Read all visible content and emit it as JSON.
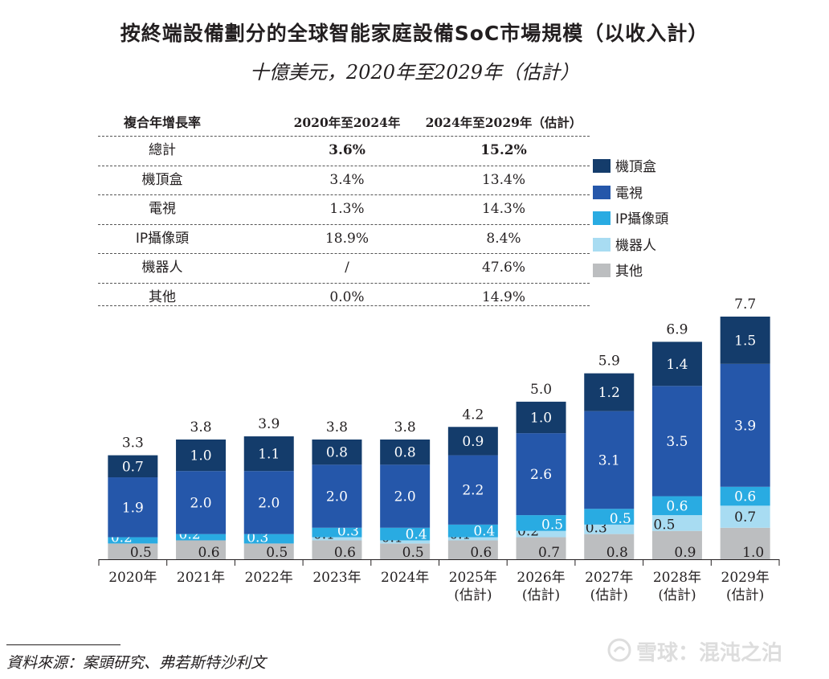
{
  "title": "按終端設備劃分的全球智能家庭設備SoC市場規模（以收入計）",
  "subtitle": "十億美元，2020年至2029年（估計）",
  "cagr_table": {
    "headers": [
      "複合年增長率",
      "2020年至2024年",
      "2024年至2029年（估計）"
    ],
    "rows": [
      {
        "label": "總計",
        "p1": "3.6%",
        "p2": "15.2%"
      },
      {
        "label": "機頂盒",
        "p1": "3.4%",
        "p2": "13.4%"
      },
      {
        "label": "電視",
        "p1": "1.3%",
        "p2": "14.3%"
      },
      {
        "label": "IP攝像頭",
        "p1": "18.9%",
        "p2": "8.4%"
      },
      {
        "label": "機器人",
        "p1": "/",
        "p2": "47.6%"
      },
      {
        "label": "其他",
        "p1": "0.0%",
        "p2": "14.9%"
      }
    ]
  },
  "source": "資料來源：案頭研究、弗若斯特沙利文",
  "watermark": "雪球：混沌之泊",
  "chart_data": {
    "type": "bar",
    "stacked": true,
    "categories": [
      "2020年",
      "2021年",
      "2022年",
      "2023年",
      "2024年",
      "2025年\n(估計)",
      "2026年\n(估計)",
      "2027年\n(估計)",
      "2028年\n(估計)",
      "2029年\n(估計)"
    ],
    "totals": [
      "3.3",
      "3.8",
      "3.9",
      "3.8",
      "3.8",
      "4.2",
      "5.0",
      "5.9",
      "6.9",
      "7.7"
    ],
    "series": [
      {
        "name": "其他",
        "color": "#bcbec0",
        "values": [
          0.5,
          0.6,
          0.5,
          0.6,
          0.5,
          0.6,
          0.7,
          0.8,
          0.9,
          1.0
        ],
        "labels": [
          "0.5",
          "0.6",
          "0.5",
          "0.6",
          "0.5",
          "0.6",
          "0.7",
          "0.8",
          "0.9",
          "1.0"
        ]
      },
      {
        "name": "機器人",
        "color": "#a8dcf2",
        "values": [
          0,
          0,
          0,
          0.1,
          0.1,
          0.1,
          0.2,
          0.3,
          0.5,
          0.7
        ],
        "labels": [
          "",
          "",
          "",
          "0.1",
          "0.1",
          "0.1",
          "0.2",
          "0.3",
          "0.5",
          "0.7"
        ]
      },
      {
        "name": "IP攝像頭",
        "color": "#29abe2",
        "values": [
          0.2,
          0.2,
          0.3,
          0.3,
          0.4,
          0.4,
          0.5,
          0.5,
          0.6,
          0.6
        ],
        "labels": [
          "0.2",
          "0.2",
          "0.3",
          "0.3",
          "0.4",
          "0.4",
          "0.5",
          "0.5",
          "0.6",
          "0.6"
        ]
      },
      {
        "name": "電視",
        "color": "#2557aa",
        "values": [
          1.9,
          2.0,
          2.0,
          2.0,
          2.0,
          2.2,
          2.6,
          3.1,
          3.5,
          3.9
        ],
        "labels": [
          "1.9",
          "2.0",
          "2.0",
          "2.0",
          "2.0",
          "2.2",
          "2.6",
          "3.1",
          "3.5",
          "3.9"
        ]
      },
      {
        "name": "機頂盒",
        "color": "#143c6b",
        "values": [
          0.7,
          1.0,
          1.1,
          0.8,
          0.8,
          0.9,
          1.0,
          1.2,
          1.4,
          1.5
        ],
        "labels": [
          "0.7",
          "1.0",
          "1.1",
          "0.8",
          "0.8",
          "0.9",
          "1.0",
          "1.2",
          "1.4",
          "1.5"
        ]
      }
    ],
    "legend_order": [
      "機頂盒",
      "電視",
      "IP攝像頭",
      "機器人",
      "其他"
    ],
    "legend_position": "right",
    "ylim": [
      0,
      7.7
    ],
    "grid": false,
    "xlabel": "",
    "ylabel": ""
  }
}
